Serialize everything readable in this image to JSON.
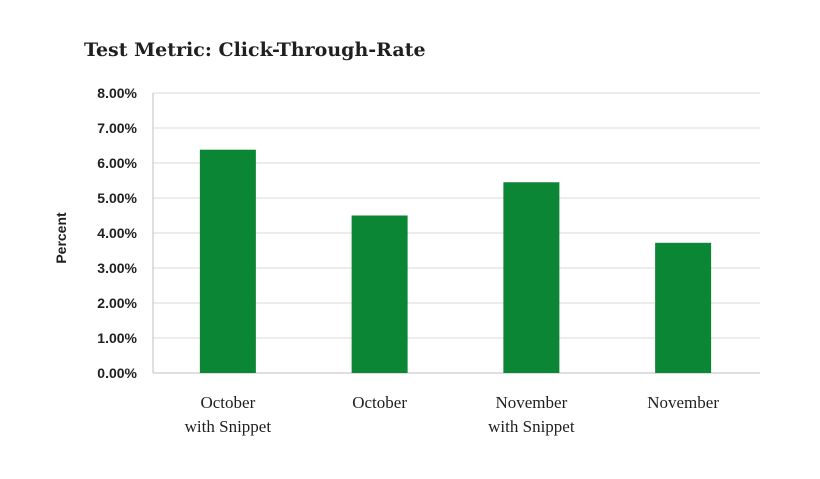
{
  "chart_data": {
    "type": "bar",
    "title": "Test Metric: Click-Through-Rate",
    "ylabel": "Percent",
    "xlabel": "",
    "categories": [
      [
        "October",
        "with Snippet"
      ],
      [
        "October"
      ],
      [
        "November",
        "with Snippet"
      ],
      [
        "November"
      ]
    ],
    "values": [
      6.38,
      4.5,
      5.45,
      3.72
    ],
    "ylim": [
      0,
      8
    ],
    "yticks": [
      0,
      1,
      2,
      3,
      4,
      5,
      6,
      7,
      8
    ],
    "ytick_labels": [
      "0.00%",
      "1.00%",
      "2.00%",
      "3.00%",
      "4.00%",
      "5.00%",
      "6.00%",
      "7.00%",
      "8.00%"
    ],
    "grid": true,
    "legend": "none",
    "bar_color": "#0b8634"
  }
}
